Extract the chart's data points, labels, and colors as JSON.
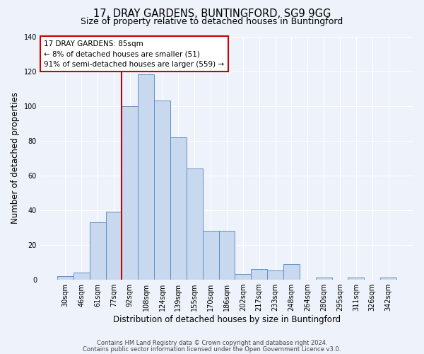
{
  "title_line1": "17, DRAY GARDENS, BUNTINGFORD, SG9 9GG",
  "title_line2": "Size of property relative to detached houses in Buntingford",
  "xlabel": "Distribution of detached houses by size in Buntingford",
  "ylabel": "Number of detached properties",
  "bar_labels": [
    "30sqm",
    "46sqm",
    "61sqm",
    "77sqm",
    "92sqm",
    "108sqm",
    "124sqm",
    "139sqm",
    "155sqm",
    "170sqm",
    "186sqm",
    "202sqm",
    "217sqm",
    "233sqm",
    "248sqm",
    "264sqm",
    "280sqm",
    "295sqm",
    "311sqm",
    "326sqm",
    "342sqm"
  ],
  "bar_heights": [
    2,
    4,
    33,
    39,
    100,
    118,
    103,
    82,
    64,
    28,
    28,
    3,
    6,
    5,
    9,
    0,
    1,
    0,
    1,
    0,
    1
  ],
  "bar_color": "#c8d8ef",
  "bar_edge_color": "#5f8fc4",
  "vline_color": "#cc0000",
  "annotation_lines": [
    "17 DRAY GARDENS: 85sqm",
    "← 8% of detached houses are smaller (51)",
    "91% of semi-detached houses are larger (559) →"
  ],
  "annotation_box_edge": "#cc0000",
  "ylim": [
    0,
    140
  ],
  "yticks": [
    0,
    20,
    40,
    60,
    80,
    100,
    120,
    140
  ],
  "footer_line1": "Contains HM Land Registry data © Crown copyright and database right 2024.",
  "footer_line2": "Contains public sector information licensed under the Open Government Licence v3.0.",
  "background_color": "#eef2fa",
  "plot_background": "#eef2fa",
  "grid_color": "#ffffff",
  "title_fontsize": 10.5,
  "subtitle_fontsize": 9,
  "axis_label_fontsize": 8.5,
  "tick_fontsize": 7,
  "annotation_fontsize": 7.5,
  "footer_fontsize": 6
}
